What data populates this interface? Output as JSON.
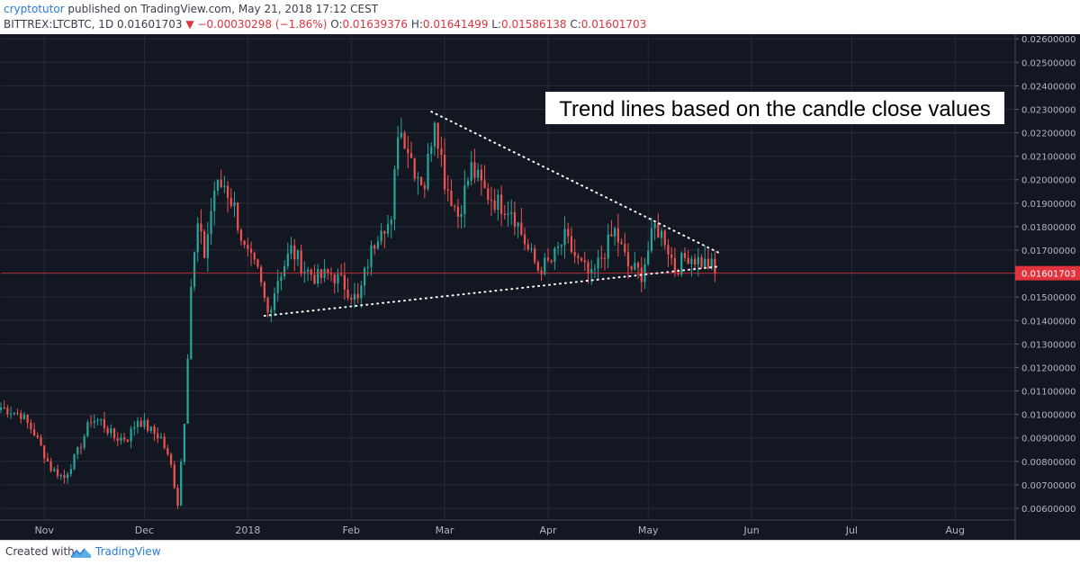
{
  "header": {
    "author": "cryptotutor",
    "published_text": "published on TradingView.com, May 21, 2018 17:12 CEST",
    "symbol": "BITTREX:LTCBTC, 1D",
    "last_price": "0.01601703",
    "change_arrow": "▼",
    "change": "−0.00030298 (−1.86%)",
    "o_label": "O:",
    "o_value": "0.01639376",
    "h_label": "H:",
    "h_value": "0.01641499",
    "l_label": "L:",
    "l_value": "0.01586138",
    "c_label": "C:",
    "c_value": "0.01601703"
  },
  "footer": {
    "created_with": "Created with",
    "brand": "TradingView"
  },
  "colors": {
    "background": "#131722",
    "grid": "#252b38",
    "up": "#26a69a",
    "down": "#ef5350",
    "price_line": "#e0333b",
    "axis_text": "#b2b5be",
    "trendline": "#ffffff"
  },
  "chart_data": {
    "type": "candlestick",
    "annotation": "Trend lines based on the candle close values",
    "last_price_label": "0.01601703",
    "ylim": [
      0.0055,
      0.0262
    ],
    "y_ticks": [
      "0.00600000",
      "0.00700000",
      "0.00800000",
      "0.00900000",
      "0.01000000",
      "0.01100000",
      "0.01200000",
      "0.01300000",
      "0.01400000",
      "0.01500000",
      "0.01700000",
      "0.01800000",
      "0.01900000",
      "0.02000000",
      "0.02100000",
      "0.02200000",
      "0.02300000",
      "0.02400000",
      "0.02500000",
      "0.02600000"
    ],
    "x_ticks": [
      "Nov",
      "Dec",
      "2018",
      "Feb",
      "Mar",
      "Apr",
      "May",
      "Jun",
      "Jul",
      "Aug"
    ],
    "x_tick_dates": [
      "2017-11-01",
      "2017-12-01",
      "2018-01-01",
      "2018-02-01",
      "2018-03-01",
      "2018-04-01",
      "2018-05-01",
      "2018-06-01",
      "2018-07-01",
      "2018-08-01"
    ],
    "x_range": [
      "2017-10-19",
      "2018-08-19"
    ],
    "close_path": [
      [
        "2017-10-19",
        0.0103
      ],
      [
        "2017-10-25",
        0.01
      ],
      [
        "2017-10-29",
        0.0092
      ],
      [
        "2017-11-03",
        0.0077
      ],
      [
        "2017-11-07",
        0.0073
      ],
      [
        "2017-11-11",
        0.0084
      ],
      [
        "2017-11-15",
        0.0098
      ],
      [
        "2017-11-18",
        0.0097
      ],
      [
        "2017-11-22",
        0.009
      ],
      [
        "2017-11-26",
        0.009
      ],
      [
        "2017-11-29",
        0.0098
      ],
      [
        "2017-12-03",
        0.0093
      ],
      [
        "2017-12-06",
        0.009
      ],
      [
        "2017-12-09",
        0.0078
      ],
      [
        "2017-12-11",
        0.0062
      ],
      [
        "2017-12-13",
        0.0098
      ],
      [
        "2017-12-15",
        0.0155
      ],
      [
        "2017-12-17",
        0.018
      ],
      [
        "2017-12-19",
        0.0168
      ],
      [
        "2017-12-22",
        0.0196
      ],
      [
        "2017-12-25",
        0.0198
      ],
      [
        "2017-12-28",
        0.0188
      ],
      [
        "2017-12-31",
        0.017
      ],
      [
        "2018-01-04",
        0.016
      ],
      [
        "2018-01-07",
        0.0143
      ],
      [
        "2018-01-10",
        0.0158
      ],
      [
        "2018-01-14",
        0.017
      ],
      [
        "2018-01-18",
        0.0162
      ],
      [
        "2018-01-22",
        0.0158
      ],
      [
        "2018-01-26",
        0.016
      ],
      [
        "2018-01-30",
        0.0155
      ],
      [
        "2018-02-03",
        0.0148
      ],
      [
        "2018-02-06",
        0.0165
      ],
      [
        "2018-02-10",
        0.0182
      ],
      [
        "2018-02-13",
        0.018
      ],
      [
        "2018-02-15",
        0.0222
      ],
      [
        "2018-02-17",
        0.0218
      ],
      [
        "2018-02-20",
        0.0205
      ],
      [
        "2018-02-23",
        0.0198
      ],
      [
        "2018-02-26",
        0.0228
      ],
      [
        "2018-03-01",
        0.02
      ],
      [
        "2018-03-05",
        0.0185
      ],
      [
        "2018-03-09",
        0.0205
      ],
      [
        "2018-03-13",
        0.0195
      ],
      [
        "2018-03-17",
        0.019
      ],
      [
        "2018-03-21",
        0.0188
      ],
      [
        "2018-03-26",
        0.017
      ],
      [
        "2018-03-29",
        0.0162
      ],
      [
        "2018-04-02",
        0.0165
      ],
      [
        "2018-04-06",
        0.0175
      ],
      [
        "2018-04-10",
        0.0165
      ],
      [
        "2018-04-14",
        0.0158
      ],
      [
        "2018-04-18",
        0.017
      ],
      [
        "2018-04-21",
        0.0178
      ],
      [
        "2018-04-25",
        0.0163
      ],
      [
        "2018-04-29",
        0.016
      ],
      [
        "2018-05-03",
        0.018
      ],
      [
        "2018-05-06",
        0.0175
      ],
      [
        "2018-05-09",
        0.0162
      ],
      [
        "2018-05-13",
        0.0168
      ],
      [
        "2018-05-17",
        0.0165
      ],
      [
        "2018-05-20",
        0.0163
      ],
      [
        "2018-05-21",
        0.016
      ]
    ],
    "trendlines": [
      {
        "name": "upper",
        "points": [
          [
            "2018-02-25",
            0.0229
          ],
          [
            "2018-05-22",
            0.0169
          ]
        ]
      },
      {
        "name": "lower",
        "points": [
          [
            "2018-01-06",
            0.0142
          ],
          [
            "2018-05-22",
            0.0163
          ]
        ]
      }
    ],
    "grid": true,
    "y_axis_position": "right"
  }
}
